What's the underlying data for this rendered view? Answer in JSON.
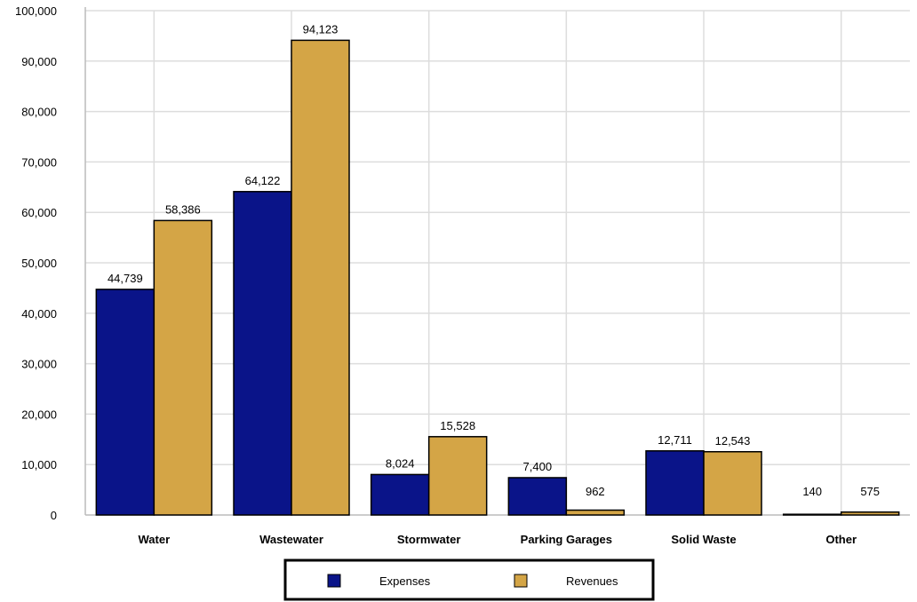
{
  "chart_data": {
    "type": "bar",
    "categories": [
      "Water",
      "Wastewater",
      "Stormwater",
      "Parking Garages",
      "Solid Waste",
      "Other"
    ],
    "series": [
      {
        "name": "Expenses",
        "values": [
          44739,
          64122,
          8024,
          7400,
          12711,
          140
        ],
        "labels": [
          "44,739",
          "64,122",
          "8,024",
          "7,400",
          "12,711",
          "140"
        ],
        "color": "#0a1489"
      },
      {
        "name": "Revenues",
        "values": [
          58386,
          94123,
          15528,
          962,
          12543,
          575
        ],
        "labels": [
          "58,386",
          "94,123",
          "15,528",
          "962",
          "12,543",
          "575"
        ],
        "color": "#d4a546"
      }
    ],
    "ylim": [
      0,
      100000
    ],
    "yticks": [
      0,
      10000,
      20000,
      30000,
      40000,
      50000,
      60000,
      70000,
      80000,
      90000,
      100000
    ],
    "ytick_labels": [
      "0",
      "10,000",
      "20,000",
      "30,000",
      "40,000",
      "50,000",
      "60,000",
      "70,000",
      "80,000",
      "90,000",
      "100,000"
    ],
    "grid": true,
    "legend_position": "bottom-center"
  }
}
